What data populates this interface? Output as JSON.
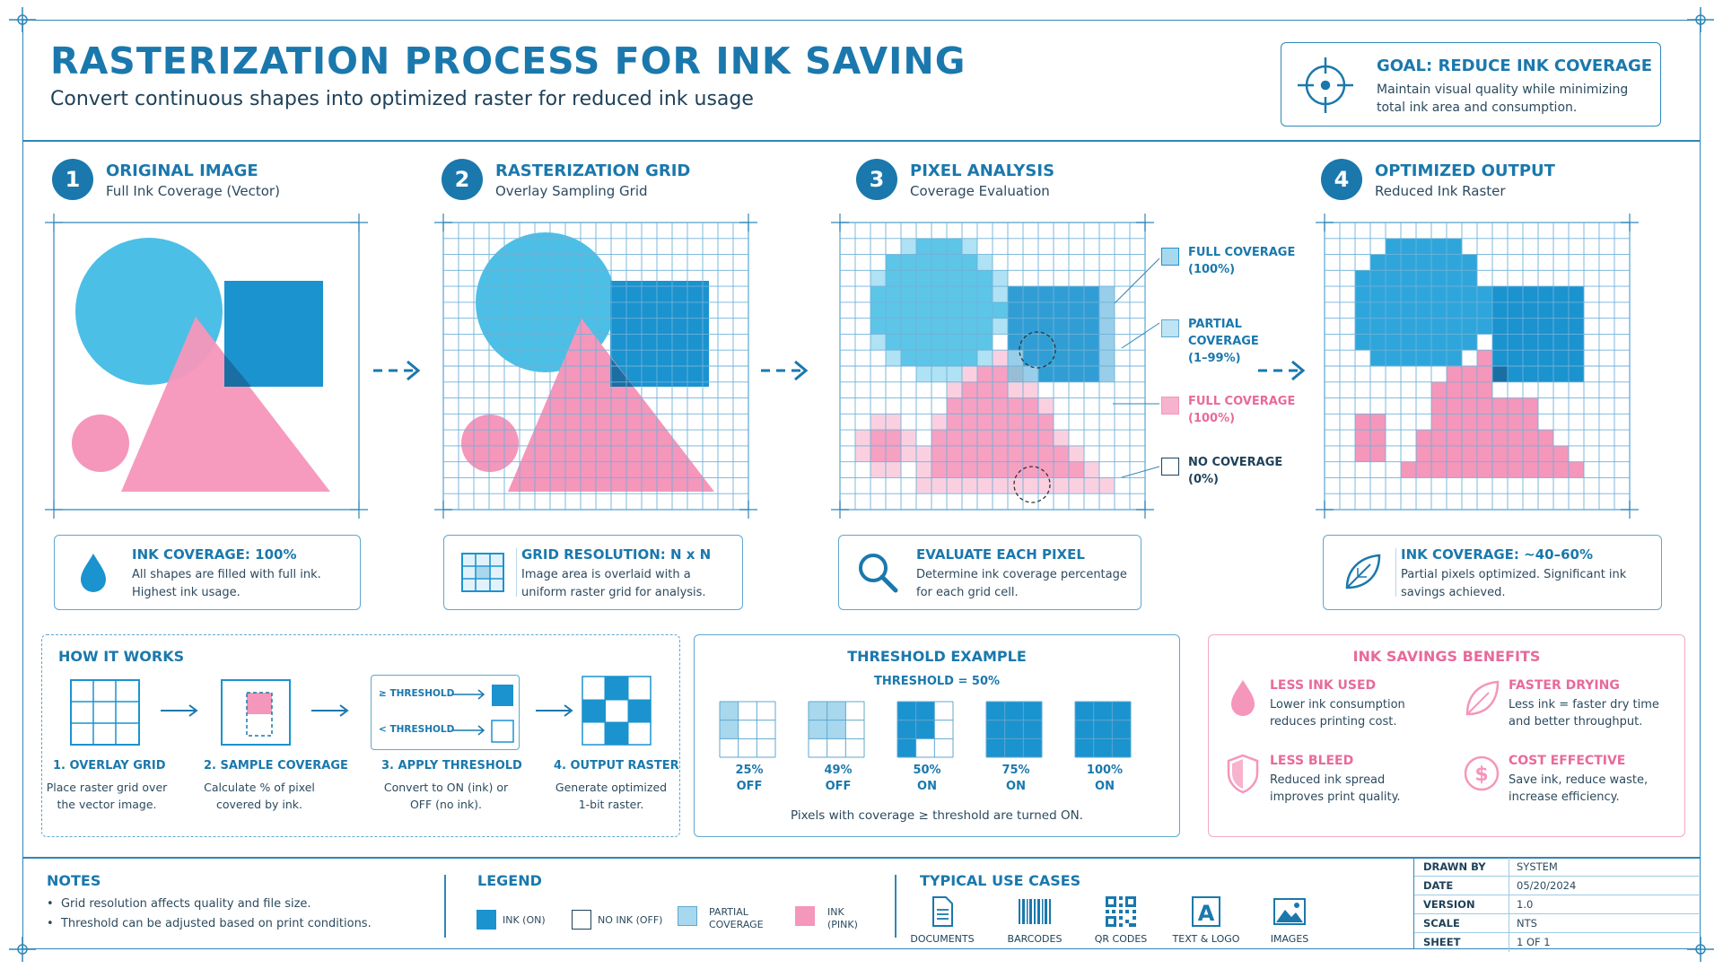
{
  "header": {
    "title": "RASTERIZATION PROCESS FOR INK SAVING",
    "subtitle": "Convert continuous shapes into optimized raster for reduced ink usage"
  },
  "goal": {
    "title": "GOAL: REDUCE INK COVERAGE",
    "description": "Maintain visual quality while minimizing total ink area and consumption."
  },
  "steps": [
    {
      "number": "1",
      "title": "ORIGINAL IMAGE",
      "subtitle": "Full Ink Coverage (Vector)",
      "info_title": "INK COVERAGE: 100%",
      "info_desc": "All shapes are filled with full ink. Highest ink usage.",
      "info_icon": "ink-drop-icon"
    },
    {
      "number": "2",
      "title": "RASTERIZATION GRID",
      "subtitle": "Overlay Sampling Grid",
      "info_title": "GRID RESOLUTION: N x N",
      "info_desc": "Image area is overlaid with a uniform raster grid for analysis.",
      "info_icon": "grid-icon"
    },
    {
      "number": "3",
      "title": "PIXEL ANALYSIS",
      "subtitle": "Coverage Evaluation",
      "info_title": "EVALUATE EACH PIXEL",
      "info_desc": "Determine ink coverage percentage for each grid cell.",
      "info_icon": "magnifier-icon"
    },
    {
      "number": "4",
      "title": "OPTIMIZED OUTPUT",
      "subtitle": "Reduced Ink Raster",
      "info_title": "INK COVERAGE: ~40–60%",
      "info_desc": "Partial pixels optimized. Significant ink savings achieved.",
      "info_icon": "leaf-icon"
    }
  ],
  "coverage_legend": [
    {
      "label1": "FULL COVERAGE",
      "label2": "(100%)",
      "color": "#1a93cf"
    },
    {
      "label1": "PARTIAL COVERAGE",
      "label2": "(1–99%)",
      "color": "#a8d8ee"
    },
    {
      "label1": "FULL COVERAGE",
      "label2": "(100%)",
      "color": "#f596bb"
    },
    {
      "label1": "NO COVERAGE",
      "label2": "(0%)",
      "color": "#ffffff"
    }
  ],
  "how_it_works": {
    "title": "HOW IT WORKS",
    "threshold_ge": "≥ THRESHOLD",
    "threshold_lt": "< THRESHOLD",
    "steps": [
      {
        "label": "1. OVERLAY GRID",
        "desc": "Place raster grid over the vector image."
      },
      {
        "label": "2. SAMPLE COVERAGE",
        "desc": "Calculate % of pixel covered by ink."
      },
      {
        "label": "3. APPLY THRESHOLD",
        "desc": "Convert to ON (ink) or OFF (no ink)."
      },
      {
        "label": "4. OUTPUT RASTER",
        "desc": "Generate optimized 1-bit raster."
      }
    ]
  },
  "threshold_example": {
    "title": "THRESHOLD EXAMPLE",
    "threshold": "THRESHOLD = 50%",
    "footer": "Pixels with coverage ≥ threshold are turned ON.",
    "items": [
      {
        "pct": "25%",
        "state": "OFF",
        "value": 0.25
      },
      {
        "pct": "49%",
        "state": "OFF",
        "value": 0.49
      },
      {
        "pct": "50%",
        "state": "ON",
        "value": 0.5
      },
      {
        "pct": "75%",
        "state": "ON",
        "value": 0.75
      },
      {
        "pct": "100%",
        "state": "ON",
        "value": 1.0
      }
    ]
  },
  "benefits": {
    "title": "INK SAVINGS BENEFITS",
    "items": [
      {
        "title": "LESS INK USED",
        "desc1": "Lower ink consumption",
        "desc2": "reduces printing cost.",
        "icon": "ink-drop-icon"
      },
      {
        "title": "FASTER DRYING",
        "desc1": "Less ink = faster dry time",
        "desc2": "and better throughput.",
        "icon": "leaf-icon"
      },
      {
        "title": "LESS BLEED",
        "desc1": "Reduced ink spread",
        "desc2": "improves print quality.",
        "icon": "shield-icon"
      },
      {
        "title": "COST EFFECTIVE",
        "desc1": "Save ink, reduce waste,",
        "desc2": "increase efficiency.",
        "icon": "dollar-icon"
      }
    ]
  },
  "notes": {
    "title": "NOTES",
    "items": [
      "Grid resolution affects quality and file size.",
      "Threshold can be adjusted based on print conditions."
    ]
  },
  "legend": {
    "title": "LEGEND",
    "items": [
      {
        "label1": "INK (ON)",
        "label2": "",
        "color": "#1a93cf"
      },
      {
        "label1": "NO INK (OFF)",
        "label2": "",
        "color": "#ffffff"
      },
      {
        "label1": "PARTIAL",
        "label2": "COVERAGE",
        "color": "#a8d8ee"
      },
      {
        "label1": "INK",
        "label2": "(PINK)",
        "color": "#f596bb"
      }
    ]
  },
  "use_cases": {
    "title": "TYPICAL USE CASES",
    "items": [
      {
        "label": "DOCUMENTS",
        "icon": "document-icon"
      },
      {
        "label": "BARCODES",
        "icon": "barcode-icon"
      },
      {
        "label": "QR CODES",
        "icon": "qr-code-icon"
      },
      {
        "label": "TEXT & LOGO",
        "icon": "text-logo-icon"
      },
      {
        "label": "IMAGES",
        "icon": "image-icon"
      }
    ]
  },
  "title_block": [
    {
      "key": "DRAWN BY",
      "value": "SYSTEM"
    },
    {
      "key": "DATE",
      "value": "05/20/2024"
    },
    {
      "key": "VERSION",
      "value": "1.0"
    },
    {
      "key": "SCALE",
      "value": "NTS"
    },
    {
      "key": "SHEET",
      "value": "1 OF 1"
    }
  ],
  "colors": {
    "blue": "#1a93cf",
    "light_blue": "#4bbfe6",
    "pink": "#f596bb",
    "partial": "#a8d8ee",
    "accent": "#1a78ad"
  }
}
